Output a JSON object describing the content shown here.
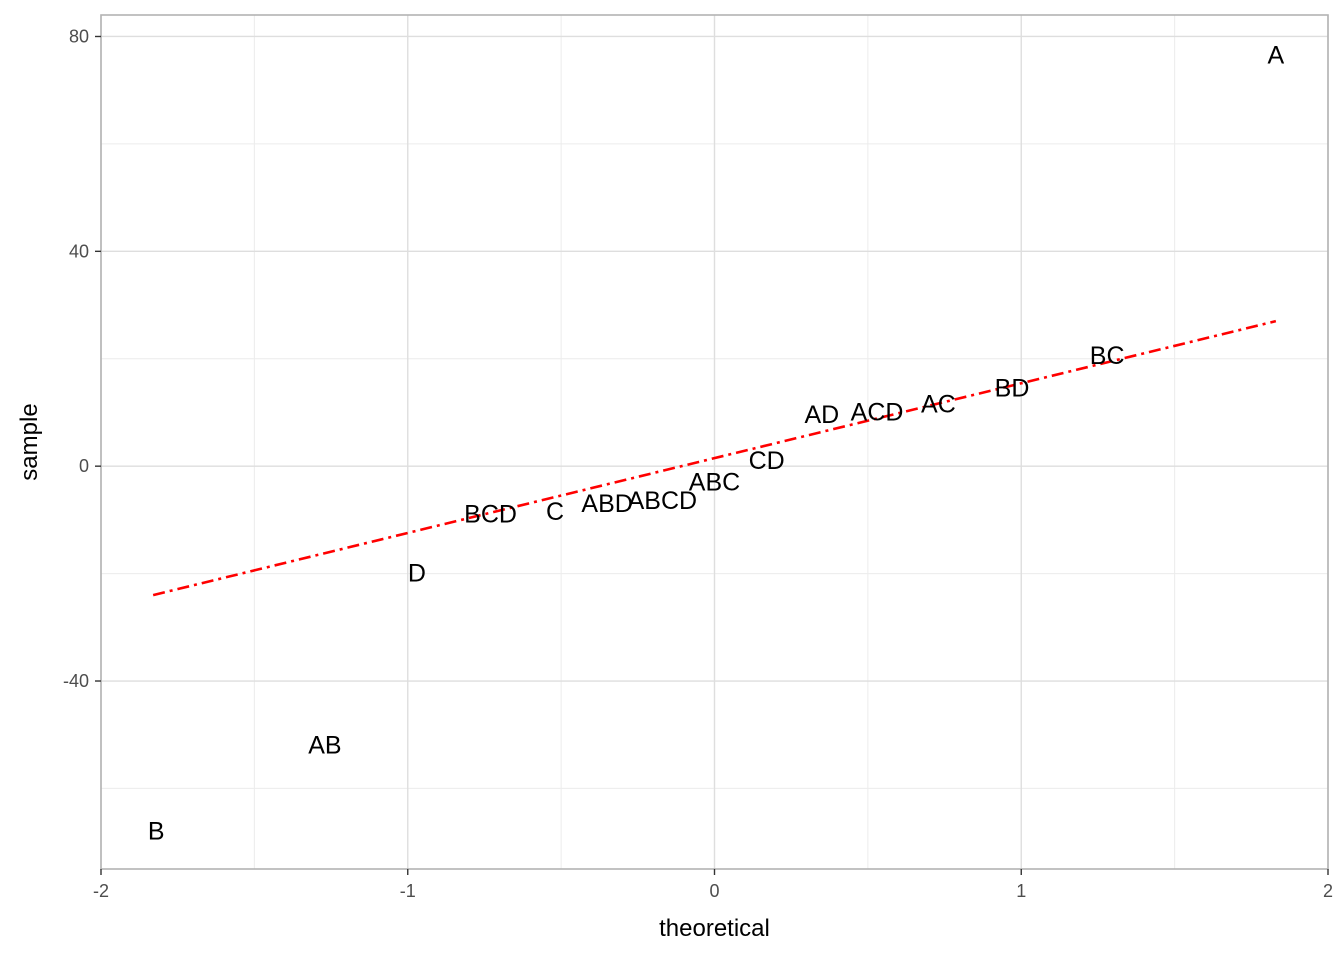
{
  "chart_data": {
    "type": "scatter",
    "title": "",
    "xlabel": "theoretical",
    "ylabel": "sample",
    "xlim": [
      -2,
      2
    ],
    "ylim": [
      -75,
      84
    ],
    "x_major_ticks": [
      -2,
      -1,
      0,
      1,
      2
    ],
    "x_tick_labels": [
      "-2",
      "-1",
      "0",
      "1",
      "2"
    ],
    "x_minor_ticks": [
      -1.5,
      -0.5,
      0.5,
      1.5
    ],
    "y_major_ticks": [
      -40,
      0,
      40,
      80
    ],
    "y_tick_labels": [
      "-40",
      "0",
      "40",
      "80"
    ],
    "y_minor_ticks": [
      -60,
      -20,
      20,
      60
    ],
    "grid": true,
    "points": [
      {
        "label": "B",
        "x": -1.82,
        "y": -68.0
      },
      {
        "label": "AB",
        "x": -1.27,
        "y": -52.0
      },
      {
        "label": "D",
        "x": -0.97,
        "y": -20.0
      },
      {
        "label": "BCD",
        "x": -0.73,
        "y": -9.0
      },
      {
        "label": "C",
        "x": -0.52,
        "y": -8.5
      },
      {
        "label": "ABD",
        "x": -0.35,
        "y": -7.0
      },
      {
        "label": "ABCD",
        "x": -0.17,
        "y": -6.5
      },
      {
        "label": "ABC",
        "x": 0.0,
        "y": -3.0
      },
      {
        "label": "CD",
        "x": 0.17,
        "y": 1.0
      },
      {
        "label": "AD",
        "x": 0.35,
        "y": 9.5
      },
      {
        "label": "ACD",
        "x": 0.53,
        "y": 10.0
      },
      {
        "label": "AC",
        "x": 0.73,
        "y": 11.5
      },
      {
        "label": "BD",
        "x": 0.97,
        "y": 14.5
      },
      {
        "label": "BC",
        "x": 1.28,
        "y": 20.5
      },
      {
        "label": "A",
        "x": 1.83,
        "y": 76.5
      }
    ],
    "reference_line": {
      "x": [
        -1.83,
        1.83
      ],
      "y": [
        -24.0,
        27.0
      ],
      "color": "#ff0000",
      "style": "dotdash"
    },
    "colors": {
      "panel_border": "#b3b3b3",
      "grid_major": "#dedede",
      "grid_minor": "#ececec",
      "text": "#000000",
      "tick_text": "#4d4d4d"
    }
  }
}
